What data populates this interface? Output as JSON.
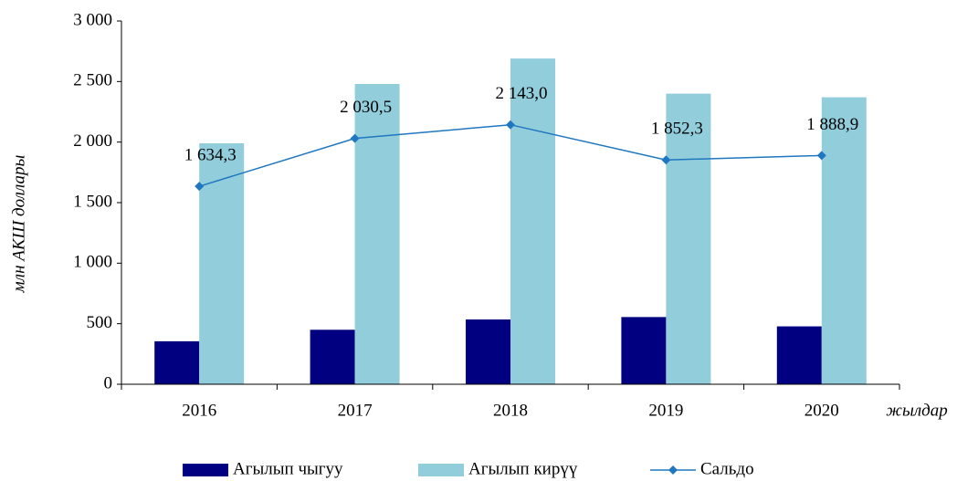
{
  "chart_data": {
    "type": "bar_line",
    "categories": [
      "2016",
      "2017",
      "2018",
      "2019",
      "2020"
    ],
    "y_label": "млн АКШ доллары",
    "x_label": "жылдар",
    "series": [
      {
        "name": "Агылып чыгуу",
        "color": "#000080",
        "type": "bar",
        "values": [
          355,
          450,
          535,
          555,
          478
        ]
      },
      {
        "name": "Агылып кирүү",
        "color": "#92cddc",
        "type": "bar",
        "values": [
          1990,
          2480,
          2690,
          2400,
          2370
        ]
      },
      {
        "name": "Сальдо",
        "color": "#1f77c0",
        "type": "line",
        "values": [
          1634.3,
          2030.5,
          2143.0,
          1852.3,
          1888.9
        ],
        "value_labels": [
          "1 634,3",
          "2 030,5",
          "2 143,0",
          "1 852,3",
          "1 888,9"
        ]
      }
    ],
    "ylim": [
      0,
      3000
    ],
    "yticks": [
      0,
      500,
      {
        "value": 1000,
        "label": "1 000"
      },
      {
        "value": 1500,
        "label": "1 500"
      },
      {
        "value": 2000,
        "label": "2 000"
      },
      {
        "value": 2500,
        "label": "2 500"
      },
      {
        "value": 3000,
        "label": "3 000"
      }
    ],
    "legend": "bottom"
  }
}
